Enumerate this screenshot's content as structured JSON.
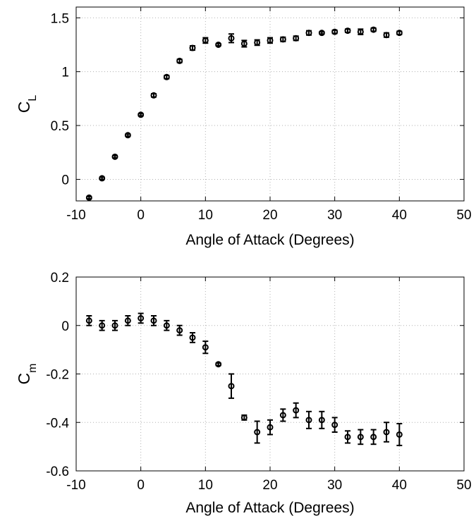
{
  "chart_data": [
    {
      "type": "scatter",
      "xlabel": "Angle of Attack (Degrees)",
      "ylabel": {
        "main": "C",
        "sub": "L"
      },
      "xlim": [
        -10,
        50
      ],
      "ylim": [
        -0.2,
        1.6
      ],
      "xticks": [
        "-10",
        "0",
        "10",
        "20",
        "30",
        "40",
        "50"
      ],
      "yticks": [
        "0",
        "0.5",
        "1",
        "1.5"
      ],
      "xtick_values": [
        -10,
        0,
        10,
        20,
        30,
        40,
        50
      ],
      "ytick_values": [
        0,
        0.5,
        1,
        1.5
      ],
      "grid": true,
      "series": [
        {
          "marker": "circle",
          "x": [
            -8,
            -6,
            -4,
            -2,
            0,
            2,
            4,
            6,
            8,
            10,
            12,
            14,
            16,
            18,
            20,
            22,
            24,
            26,
            28,
            30,
            32,
            34,
            36,
            38,
            40
          ],
          "y": [
            -0.17,
            0.01,
            0.21,
            0.41,
            0.6,
            0.78,
            0.95,
            1.1,
            1.22,
            1.29,
            1.25,
            1.31,
            1.26,
            1.27,
            1.29,
            1.3,
            1.31,
            1.36,
            1.36,
            1.37,
            1.38,
            1.37,
            1.39,
            1.34,
            1.36
          ],
          "error": [
            0.01,
            0.01,
            0.01,
            0.01,
            0.01,
            0.015,
            0.015,
            0.015,
            0.02,
            0.025,
            0.01,
            0.04,
            0.03,
            0.025,
            0.025,
            0.02,
            0.02,
            0.02,
            0.01,
            0.015,
            0.015,
            0.025,
            0.015,
            0.02,
            0.015
          ]
        }
      ]
    },
    {
      "type": "scatter",
      "xlabel": "Angle of Attack (Degrees)",
      "ylabel": {
        "main": "C",
        "sub": "m"
      },
      "xlim": [
        -10,
        50
      ],
      "ylim": [
        -0.6,
        0.2
      ],
      "xticks": [
        "-10",
        "0",
        "10",
        "20",
        "30",
        "40",
        "50"
      ],
      "yticks": [
        "-0.6",
        "-0.4",
        "-0.2",
        "0",
        "0.2"
      ],
      "xtick_values": [
        -10,
        0,
        10,
        20,
        30,
        40,
        50
      ],
      "ytick_values": [
        -0.6,
        -0.4,
        -0.2,
        0,
        0.2
      ],
      "grid": true,
      "series": [
        {
          "marker": "circle",
          "x": [
            -8,
            -6,
            -4,
            -2,
            0,
            2,
            4,
            6,
            8,
            10,
            12,
            14,
            16,
            18,
            20,
            22,
            24,
            26,
            28,
            30,
            32,
            34,
            36,
            38,
            40
          ],
          "y": [
            0.02,
            0.0,
            0.0,
            0.02,
            0.03,
            0.02,
            0.0,
            -0.02,
            -0.05,
            -0.09,
            -0.16,
            -0.25,
            -0.38,
            -0.44,
            -0.42,
            -0.37,
            -0.35,
            -0.39,
            -0.39,
            -0.41,
            -0.46,
            -0.46,
            -0.46,
            -0.44,
            -0.45
          ],
          "error": [
            0.02,
            0.02,
            0.02,
            0.02,
            0.02,
            0.02,
            0.02,
            0.02,
            0.02,
            0.025,
            0.005,
            0.05,
            0.01,
            0.045,
            0.03,
            0.025,
            0.03,
            0.035,
            0.035,
            0.03,
            0.025,
            0.03,
            0.03,
            0.04,
            0.045
          ]
        }
      ]
    }
  ]
}
